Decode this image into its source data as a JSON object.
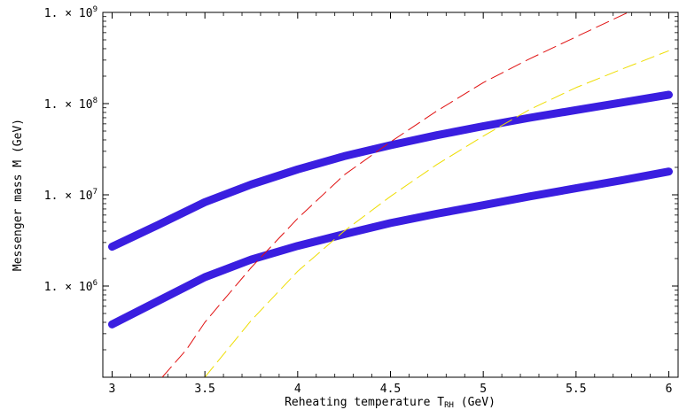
{
  "chart_data": {
    "type": "line",
    "title": "",
    "xlabel": "Reheating temperature T",
    "xlabel_sub": "RH",
    "xlabel_unit": "(GeV)",
    "ylabel": "Messenger mass M (GeV)",
    "xlim": [
      2.95,
      6.05
    ],
    "ylim": [
      100000,
      1000000000
    ],
    "yscale": "log",
    "grid": false,
    "x_ticks": [
      3,
      3.5,
      4,
      4.5,
      5,
      5.5,
      6
    ],
    "x_tick_labels": [
      "3",
      "3.5",
      "4",
      "4.5",
      "5",
      "5.5",
      "6"
    ],
    "y_ticks": [
      1000000,
      10000000,
      100000000,
      1000000000
    ],
    "y_tick_labels": [
      {
        "mantissa": "1.",
        "base": "10",
        "exp": "6"
      },
      {
        "mantissa": "1.",
        "base": "10",
        "exp": "7"
      },
      {
        "mantissa": "1.",
        "base": "10",
        "exp": "8"
      },
      {
        "mantissa": "1.",
        "base": "10",
        "exp": "9"
      }
    ],
    "series": [
      {
        "color": "#3a1ee0",
        "style": "thick-solid",
        "x": [
          3,
          3.25,
          3.5,
          3.75,
          4,
          4.25,
          4.5,
          4.75,
          5,
          5.25,
          5.5,
          5.75,
          6
        ],
        "y": [
          2700000,
          4700000,
          8300000,
          13000000,
          19000000,
          26500000,
          35000000,
          45000000,
          56500000,
          70000000,
          85000000,
          103000000,
          125000000
        ]
      },
      {
        "color": "#3a1ee0",
        "style": "thick-solid",
        "x": [
          3,
          3.25,
          3.5,
          3.75,
          4,
          4.25,
          4.5,
          4.75,
          5,
          5.25,
          5.5,
          5.75,
          6
        ],
        "y": [
          380000,
          690000,
          1250000,
          1950000,
          2750000,
          3700000,
          4900000,
          6200000,
          7700000,
          9600000,
          11800000,
          14500000,
          18000000
        ]
      },
      {
        "color": "#e01010",
        "style": "dashed",
        "x": [
          3.27,
          3.4,
          3.5,
          3.6,
          3.75,
          4,
          4.25,
          4.5,
          4.75,
          5,
          5.25,
          5.5,
          5.78
        ],
        "y": [
          100000,
          200000,
          400000,
          700000,
          1600000,
          5500000,
          16500000,
          38000000,
          83000000,
          170000000,
          310000000,
          540000000,
          1000000000
        ]
      },
      {
        "color": "#eedd00",
        "style": "dashed",
        "x": [
          3.5,
          3.75,
          4,
          4.25,
          4.5,
          4.75,
          5,
          5.25,
          5.5,
          5.75,
          6
        ],
        "y": [
          100000,
          420000,
          1450000,
          4000000,
          9600000,
          21500000,
          44000000,
          86000000,
          150000000,
          240000000,
          380000000
        ]
      }
    ]
  }
}
